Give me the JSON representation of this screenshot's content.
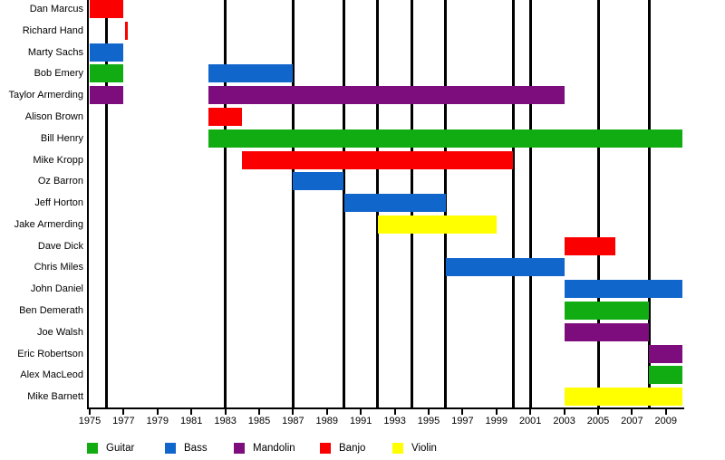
{
  "chart_data": {
    "type": "bar",
    "variant": "band-membership-timeline-gantt",
    "orientation": "horizontal",
    "grid": "vertical-event-lines",
    "legend_position": "bottom",
    "x_axis": {
      "min": 1975,
      "max": 2010,
      "tick_years": [
        1975,
        1977,
        1979,
        1981,
        1983,
        1985,
        1987,
        1989,
        1991,
        1993,
        1995,
        1997,
        1999,
        2001,
        2003,
        2005,
        2007,
        2009
      ]
    },
    "event_line_years": [
      1976,
      1983,
      1987,
      1990,
      1992,
      1994,
      1996,
      2000,
      2001,
      2005,
      2008
    ],
    "rows": [
      {
        "name": "Dan Marcus",
        "bars": [
          {
            "instrument": "Banjo",
            "start": 1975,
            "end": 1977
          }
        ]
      },
      {
        "name": "Richard Hand",
        "bars": [
          {
            "instrument": "Banjo",
            "start": 1977.1,
            "end": 1977.25
          }
        ]
      },
      {
        "name": "Marty Sachs",
        "bars": [
          {
            "instrument": "Bass",
            "start": 1975,
            "end": 1977
          }
        ]
      },
      {
        "name": "Bob Emery",
        "bars": [
          {
            "instrument": "Guitar",
            "start": 1975,
            "end": 1977
          },
          {
            "instrument": "Bass",
            "start": 1982,
            "end": 1987
          }
        ]
      },
      {
        "name": "Taylor Armerding",
        "bars": [
          {
            "instrument": "Mandolin",
            "start": 1975,
            "end": 1977
          },
          {
            "instrument": "Mandolin",
            "start": 1982,
            "end": 2003
          }
        ]
      },
      {
        "name": "Alison Brown",
        "bars": [
          {
            "instrument": "Banjo",
            "start": 1982,
            "end": 1984
          }
        ]
      },
      {
        "name": "Bill Henry",
        "bars": [
          {
            "instrument": "Guitar",
            "start": 1982,
            "end": 2010
          }
        ]
      },
      {
        "name": "Mike Kropp",
        "bars": [
          {
            "instrument": "Banjo",
            "start": 1984,
            "end": 2000
          }
        ]
      },
      {
        "name": "Oz Barron",
        "bars": [
          {
            "instrument": "Bass",
            "start": 1987,
            "end": 1990
          }
        ]
      },
      {
        "name": "Jeff Horton",
        "bars": [
          {
            "instrument": "Bass",
            "start": 1990,
            "end": 1996
          }
        ]
      },
      {
        "name": "Jake Armerding",
        "bars": [
          {
            "instrument": "Violin",
            "start": 1992,
            "end": 1999
          }
        ]
      },
      {
        "name": "Dave Dick",
        "bars": [
          {
            "instrument": "Banjo",
            "start": 2003,
            "end": 2006
          }
        ]
      },
      {
        "name": "Chris Miles",
        "bars": [
          {
            "instrument": "Bass",
            "start": 1996,
            "end": 2003
          }
        ]
      },
      {
        "name": "John Daniel",
        "bars": [
          {
            "instrument": "Bass",
            "start": 2003,
            "end": 2010
          }
        ]
      },
      {
        "name": "Ben Demerath",
        "bars": [
          {
            "instrument": "Guitar",
            "start": 2003,
            "end": 2008
          }
        ]
      },
      {
        "name": "Joe Walsh",
        "bars": [
          {
            "instrument": "Mandolin",
            "start": 2003,
            "end": 2008
          }
        ]
      },
      {
        "name": "Eric Robertson",
        "bars": [
          {
            "instrument": "Mandolin",
            "start": 2008,
            "end": 2010
          }
        ]
      },
      {
        "name": "Alex MacLeod",
        "bars": [
          {
            "instrument": "Guitar",
            "start": 2008,
            "end": 2010
          }
        ]
      },
      {
        "name": "Mike Barnett",
        "bars": [
          {
            "instrument": "Violin",
            "start": 2003,
            "end": 2010
          }
        ]
      }
    ],
    "legend": [
      {
        "label": "Guitar",
        "key": "guitar"
      },
      {
        "label": "Bass",
        "key": "bass"
      },
      {
        "label": "Mandolin",
        "key": "mandolin"
      },
      {
        "label": "Banjo",
        "key": "banjo"
      },
      {
        "label": "Violin",
        "key": "violin"
      }
    ],
    "colors": {
      "guitar": "#11AC11",
      "bass": "#1166CC",
      "mandolin": "#7D0C7D",
      "banjo": "#FA0000",
      "violin": "#FFFF00",
      "axis": "#000000",
      "event_line": "#000000"
    }
  }
}
